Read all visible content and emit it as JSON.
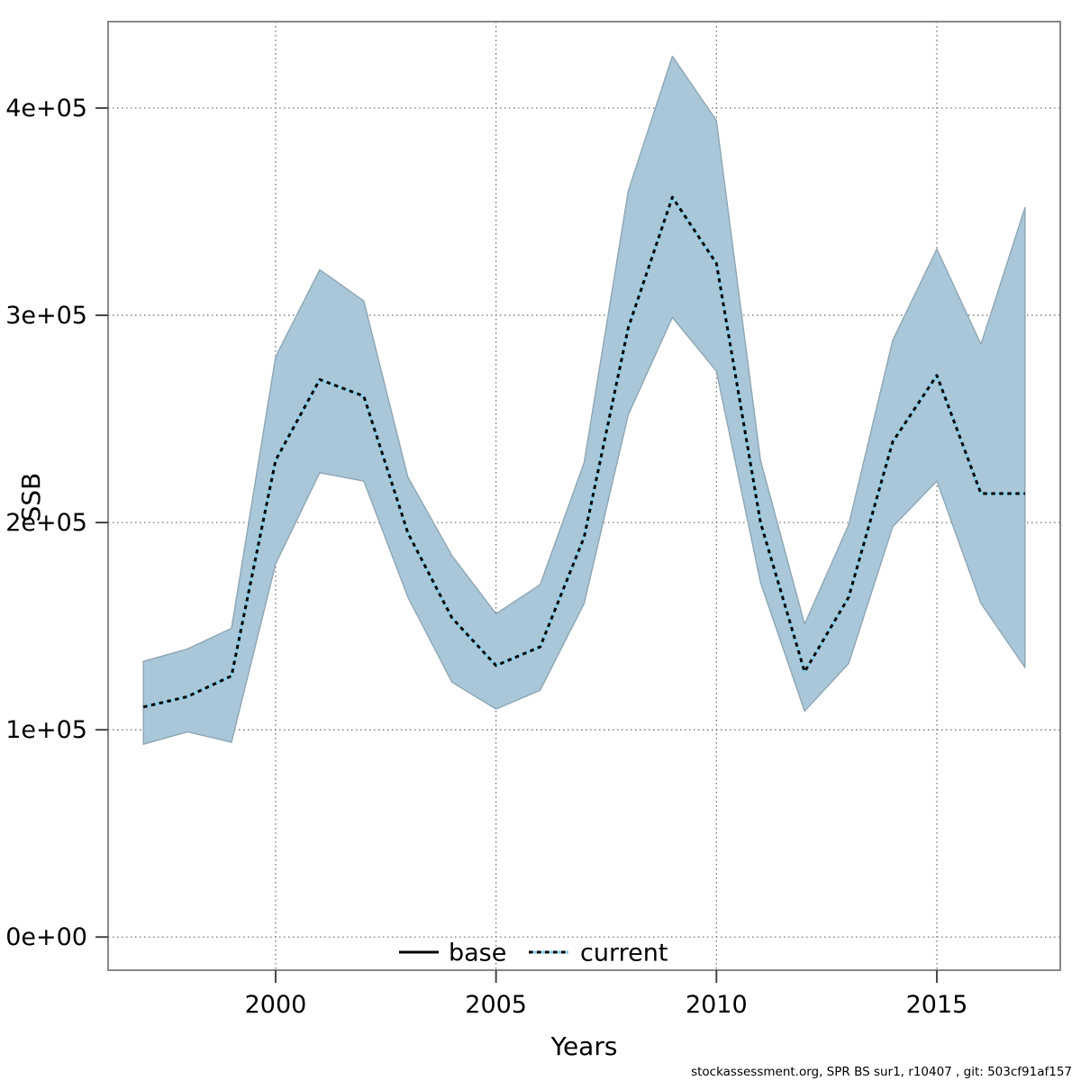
{
  "chart_data": {
    "type": "area",
    "title": "",
    "xlabel": "Years",
    "ylabel": "SSB",
    "footer": "stockassessment.org, SPR BS sur1, r10407 , git: 503cf91af157",
    "grid": true,
    "legend_position": "bottom-center-inside",
    "x_ticks": [
      2000,
      2005,
      2010,
      2015
    ],
    "y_ticks": [
      {
        "value": 0,
        "label": "0e+00"
      },
      {
        "value": 100000,
        "label": "1e+05"
      },
      {
        "value": 200000,
        "label": "2e+05"
      },
      {
        "value": 300000,
        "label": "3e+05"
      },
      {
        "value": 400000,
        "label": "4e+05"
      }
    ],
    "xlim": [
      1996.2,
      2017.8
    ],
    "ylim": [
      -16000,
      441700
    ],
    "legend": [
      {
        "label": "base",
        "style": "solid-black-line"
      },
      {
        "label": "current",
        "style": "lightblue-line-with-black-dots"
      }
    ],
    "x": [
      1997,
      1998,
      1999,
      2000,
      2001,
      2002,
      2003,
      2004,
      2005,
      2006,
      2007,
      2008,
      2009,
      2010,
      2011,
      2012,
      2013,
      2014,
      2015,
      2016,
      2017
    ],
    "series": [
      {
        "name": "current",
        "type": "line-dotted",
        "values": [
          111000,
          116000,
          126000,
          230000,
          269000,
          261000,
          195000,
          154000,
          131000,
          140000,
          193000,
          294000,
          357000,
          325000,
          200000,
          128000,
          164000,
          239000,
          271000,
          214000,
          214000
        ]
      },
      {
        "name": "current-confidence-band",
        "type": "band",
        "lower": [
          93000,
          99000,
          94000,
          180000,
          224000,
          220000,
          164000,
          123000,
          110000,
          119000,
          161000,
          252000,
          299000,
          273000,
          171000,
          109000,
          132000,
          198000,
          220000,
          161000,
          130000
        ],
        "upper": [
          133000,
          139000,
          149000,
          280000,
          322000,
          307000,
          222000,
          184000,
          156000,
          170000,
          229000,
          360000,
          425000,
          394000,
          230000,
          151000,
          199000,
          288000,
          332000,
          286000,
          352000
        ]
      }
    ],
    "colors": {
      "band_fill": "#a9c7d8",
      "band_edge": "#8ea6b4",
      "line_under": "#87ceeb",
      "line_dots": "#000000",
      "grid": "#666666",
      "border": "#888888",
      "tick": "#474747",
      "text": "#000000"
    }
  }
}
